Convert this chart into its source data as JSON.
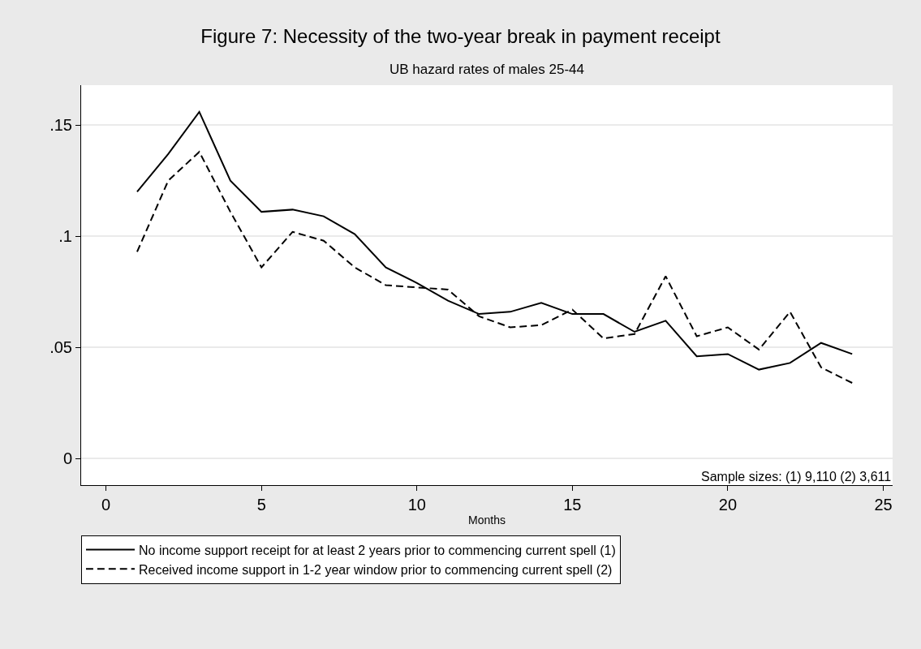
{
  "chart_data": {
    "type": "line",
    "title": "Figure 7: Necessity of the two-year break in payment receipt",
    "subtitle": "UB hazard rates of males 25-44",
    "xlabel": "Months",
    "x": [
      1,
      2,
      3,
      4,
      5,
      6,
      7,
      8,
      9,
      10,
      11,
      12,
      13,
      14,
      15,
      16,
      17,
      18,
      19,
      20,
      21,
      22,
      23,
      24
    ],
    "series": [
      {
        "name": "No income support receipt for at least 2 years prior to commencing current spell (1)",
        "color": "#000000",
        "line_style": "solid",
        "values": [
          0.12,
          0.137,
          0.156,
          0.125,
          0.111,
          0.112,
          0.109,
          0.101,
          0.086,
          0.079,
          0.071,
          0.065,
          0.066,
          0.07,
          0.065,
          0.065,
          0.057,
          0.062,
          0.046,
          0.047,
          0.04,
          0.043,
          0.052,
          0.047
        ]
      },
      {
        "name": "Received income support in 1-2 year window prior to commencing current spell (2)",
        "color": "#000000",
        "line_style": "dashed",
        "values": [
          0.093,
          0.125,
          0.138,
          0.111,
          0.086,
          0.102,
          0.098,
          0.086,
          0.078,
          0.077,
          0.076,
          0.064,
          0.059,
          0.06,
          0.067,
          0.054,
          0.056,
          0.082,
          0.055,
          0.059,
          0.049,
          0.066,
          0.041,
          0.034
        ]
      }
    ],
    "xlim": [
      -0.8,
      25.3
    ],
    "xticks": [
      0,
      5,
      10,
      15,
      20,
      25
    ],
    "ylim": [
      -0.012,
      0.168
    ],
    "yticks": [
      {
        "value": 0,
        "label": "0"
      },
      {
        "value": 0.05,
        "label": ".05"
      },
      {
        "value": 0.1,
        "label": ".1"
      },
      {
        "value": 0.15,
        "label": ".15"
      }
    ],
    "grid": "y",
    "legend": "bottom",
    "marker": "none",
    "annotations": [
      "Sample sizes: (1) 9,110 (2) 3,611"
    ]
  }
}
